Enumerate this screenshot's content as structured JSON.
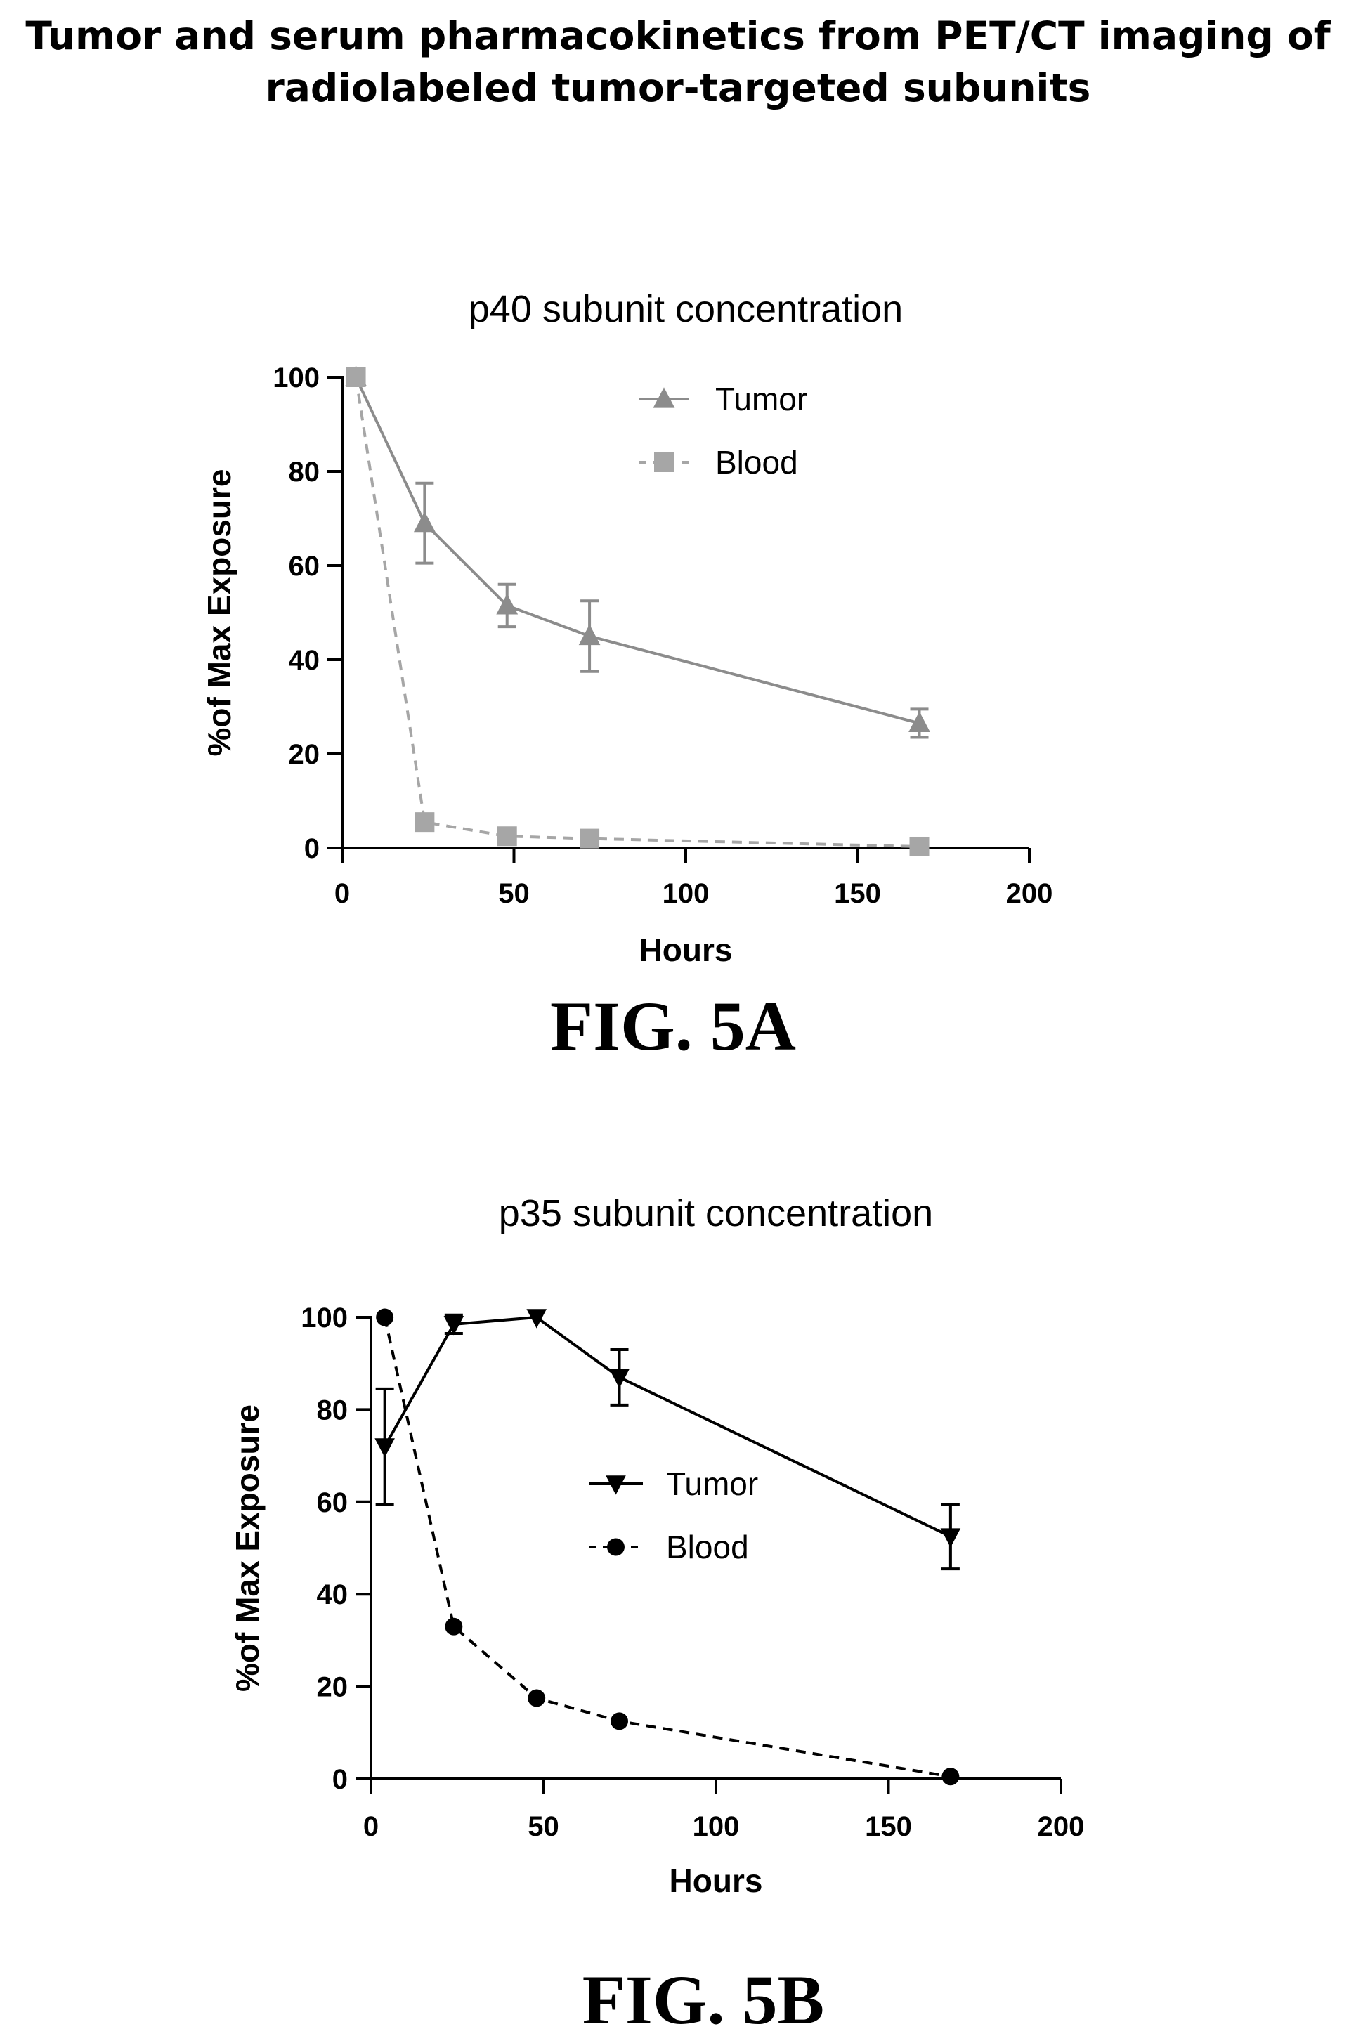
{
  "page": {
    "title_line1": "Tumor and serum pharmacokinetics from PET/CT imaging of",
    "title_line2": "radiolabeled tumor-targeted subunits"
  },
  "chart_data": [
    {
      "type": "line",
      "title": "p40 subunit concentration",
      "xlabel": "Hours",
      "ylabel": "%of Max Exposure",
      "xlim": [
        0,
        200
      ],
      "ylim": [
        0,
        100
      ],
      "xticks": [
        0,
        50,
        100,
        150,
        200
      ],
      "yticks": [
        0,
        20,
        40,
        60,
        80,
        100
      ],
      "grid": false,
      "legend_position": "top-right",
      "caption": "FIG. 5A",
      "series": [
        {
          "name": "Tumor",
          "marker": "triangle-up",
          "line": "solid",
          "color": "#8c8c8c",
          "x": [
            4,
            24,
            48,
            72,
            168
          ],
          "y": [
            100,
            69,
            51.5,
            45,
            26.5
          ],
          "err": [
            0,
            8.5,
            4.5,
            7.5,
            3
          ]
        },
        {
          "name": "Blood",
          "marker": "square",
          "line": "dashed",
          "color": "#a6a6a6",
          "x": [
            4,
            24,
            48,
            72,
            168
          ],
          "y": [
            100,
            5.5,
            2.5,
            2,
            0.3
          ],
          "err": [
            0,
            0,
            0,
            0,
            0
          ]
        }
      ]
    },
    {
      "type": "line",
      "title": "p35 subunit concentration",
      "xlabel": "Hours",
      "ylabel": "%of Max Exposure",
      "xlim": [
        0,
        200
      ],
      "ylim": [
        0,
        100
      ],
      "xticks": [
        0,
        50,
        100,
        150,
        200
      ],
      "yticks": [
        0,
        20,
        40,
        60,
        80,
        100
      ],
      "grid": false,
      "legend_position": "center-right",
      "caption": "FIG. 5B",
      "series": [
        {
          "name": "Tumor",
          "marker": "triangle-down",
          "line": "solid",
          "color": "#000000",
          "x": [
            4,
            24,
            48,
            72,
            168
          ],
          "y": [
            72,
            98.5,
            100,
            87,
            52.5
          ],
          "err": [
            12.5,
            2,
            0,
            6,
            7
          ]
        },
        {
          "name": "Blood",
          "marker": "circle",
          "line": "dashed",
          "color": "#000000",
          "x": [
            4,
            24,
            48,
            72,
            168
          ],
          "y": [
            100,
            33,
            17.5,
            12.5,
            0.5
          ],
          "err": [
            0,
            0,
            0,
            0,
            0
          ]
        }
      ]
    }
  ]
}
